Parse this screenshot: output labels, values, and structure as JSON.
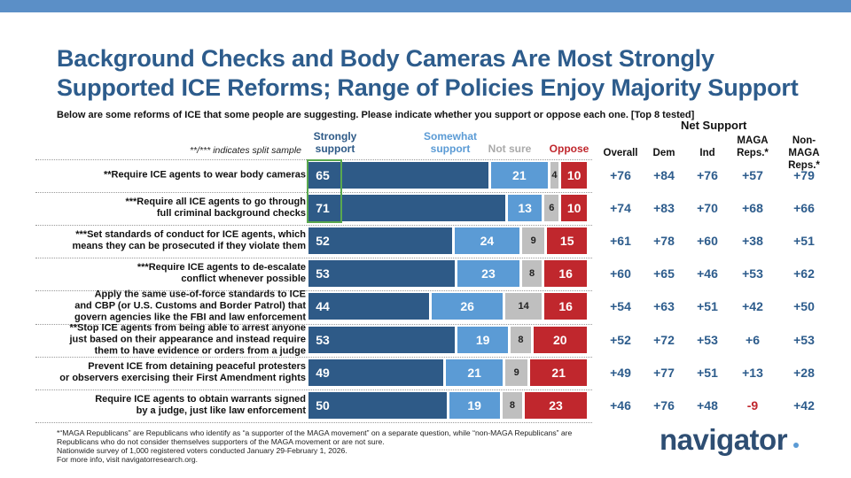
{
  "chart_data": {
    "type": "stacked-bar",
    "title": "Background Checks and Body Cameras Are Most Strongly\nSupported ICE Reforms; Range of Policies Enjoy Majority Support",
    "subtitle": "Below are some reforms of ICE that some people are suggesting. Please indicate whether you support or oppose each one. [Top 8 tested]",
    "note": "**/*** indicates split sample",
    "categories": [
      "**Require ICE agents to wear body cameras",
      "***Require all ICE agents to go through\nfull criminal background checks",
      "***Set standards of conduct for ICE agents, which\nmeans they can be prosecuted if they violate them",
      "***Require ICE agents to de-escalate\nconflict whenever possible",
      "Apply the same use-of-force standards to ICE\nand CBP (or U.S. Customs and Border Patrol) that\ngovern agencies like the FBI and law enforcement",
      "**Stop ICE agents from being able to arrest anyone\njust based on their appearance and instead require\nthem to have evidence or orders from a judge",
      "Prevent ICE from detaining peaceful protesters\nor observers exercising their First Amendment rights",
      "Require ICE agents to obtain warrants signed\nby a judge, just like law enforcement"
    ],
    "series": [
      {
        "name": "Strongly\nsupport",
        "color": "#2e5a87",
        "values": [
          65,
          71,
          52,
          53,
          44,
          53,
          49,
          50
        ]
      },
      {
        "name": "Somewhat\nsupport",
        "color": "#5b9bd5",
        "values": [
          21,
          13,
          24,
          23,
          26,
          19,
          21,
          19
        ]
      },
      {
        "name": "Not sure",
        "color": "#bfbfbf",
        "values": [
          4,
          6,
          9,
          8,
          14,
          8,
          9,
          8
        ]
      },
      {
        "name": "Oppose",
        "color": "#c0272d",
        "values": [
          10,
          10,
          15,
          16,
          16,
          20,
          21,
          23
        ]
      }
    ],
    "net_support": {
      "title": "Net Support",
      "columns": [
        "Overall",
        "Dem",
        "Ind",
        "MAGA\nReps.*",
        "Non-MAGA\nReps.*"
      ],
      "rows": [
        [
          "+76",
          "+84",
          "+76",
          "+57",
          "+79"
        ],
        [
          "+74",
          "+83",
          "+70",
          "+68",
          "+66"
        ],
        [
          "+61",
          "+78",
          "+60",
          "+38",
          "+51"
        ],
        [
          "+60",
          "+65",
          "+46",
          "+53",
          "+62"
        ],
        [
          "+54",
          "+63",
          "+51",
          "+42",
          "+50"
        ],
        [
          "+52",
          "+72",
          "+53",
          "+6",
          "+53"
        ],
        [
          "+49",
          "+77",
          "+51",
          "+13",
          "+28"
        ],
        [
          "+46",
          "+76",
          "+48",
          "-9",
          "+42"
        ]
      ]
    },
    "footnote": "*“MAGA Republicans” are Republicans who identify as “a supporter of the MAGA movement” on a separate question, while “non-MAGA Republicans” are\nRepublicans who do not consider themselves supporters of the MAGA movement or are not sure.\nNationwide survey of 1,000 registered voters conducted January 29-February 1, 2026.\nFor more info, visit navigatorresearch.org.",
    "logo": "navigator"
  }
}
